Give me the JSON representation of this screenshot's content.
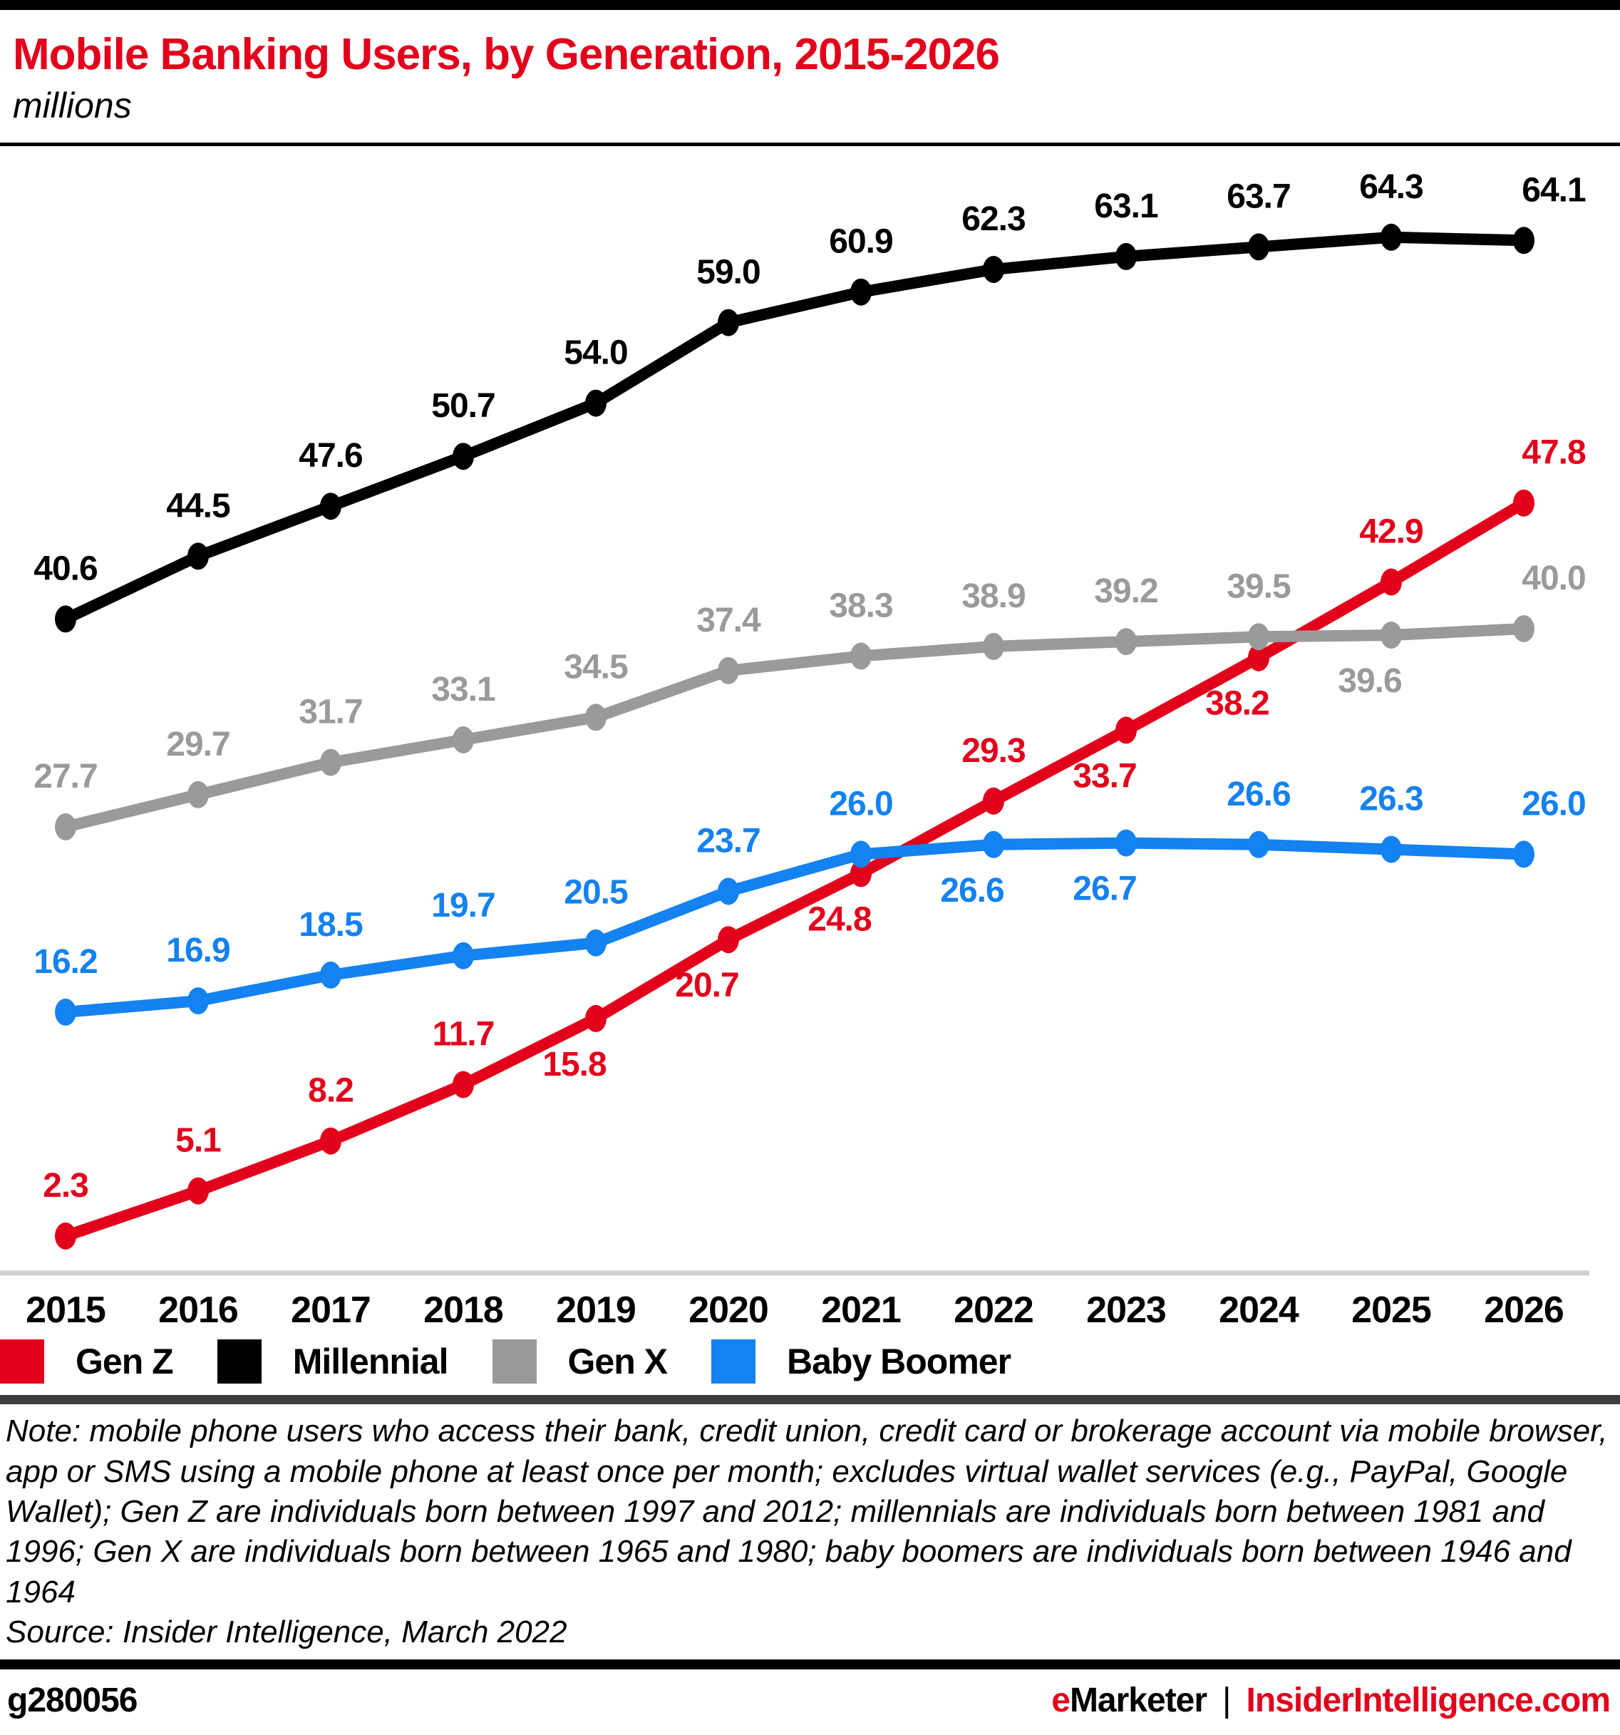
{
  "header": {
    "title": "Mobile Banking Users, by Generation, 2015-2026",
    "subtitle": "millions"
  },
  "chart_data": {
    "type": "line",
    "x": [
      2015,
      2016,
      2017,
      2018,
      2019,
      2020,
      2021,
      2022,
      2023,
      2024,
      2025,
      2026
    ],
    "series": [
      {
        "name": "Gen Z",
        "color": "#e2001b",
        "values": [
          2.3,
          5.1,
          8.2,
          11.7,
          15.8,
          20.7,
          24.8,
          29.3,
          33.7,
          38.2,
          42.9,
          47.8
        ],
        "label_below": [
          false,
          false,
          false,
          false,
          true,
          true,
          true,
          false,
          true,
          true,
          false,
          false
        ]
      },
      {
        "name": "Millennial",
        "color": "#000000",
        "values": [
          40.6,
          44.5,
          47.6,
          50.7,
          54.0,
          59.0,
          60.9,
          62.3,
          63.1,
          63.7,
          64.3,
          64.1
        ],
        "label_below": [
          false,
          false,
          false,
          false,
          false,
          false,
          false,
          false,
          false,
          false,
          false,
          false
        ]
      },
      {
        "name": "Gen X",
        "color": "#9a9a9a",
        "values": [
          27.7,
          29.7,
          31.7,
          33.1,
          34.5,
          37.4,
          38.3,
          38.9,
          39.2,
          39.5,
          39.6,
          40.0
        ],
        "label_below": [
          false,
          false,
          false,
          false,
          false,
          false,
          false,
          false,
          false,
          false,
          true,
          false
        ]
      },
      {
        "name": "Baby Boomer",
        "color": "#1482f0",
        "values": [
          16.2,
          16.9,
          18.5,
          19.7,
          20.5,
          23.7,
          26.0,
          26.6,
          26.7,
          26.6,
          26.3,
          26.0
        ],
        "label_below": [
          false,
          false,
          false,
          false,
          false,
          false,
          false,
          true,
          true,
          false,
          false,
          false
        ]
      }
    ],
    "ylim": [
      0,
      70
    ],
    "grid": false,
    "legend_position": "bottom"
  },
  "note": "Note: mobile phone users who access their bank, credit union, credit card or brokerage account via mobile browser, app or SMS using a mobile phone at least once per month; excludes virtual wallet services (e.g., PayPal, Google Wallet); Gen Z are individuals born between 1997 and 2012; millennials are individuals born between 1981 and 1996; Gen X are individuals born between 1965 and 1980; baby boomers are individuals born between 1946 and 1964",
  "source": "Source: Insider Intelligence, March 2022",
  "footer": {
    "chart_id": "g280056",
    "brand_left_e": "e",
    "brand_left_rest": "Marketer",
    "separator": "|",
    "brand_right": "InsiderIntelligence.com"
  }
}
